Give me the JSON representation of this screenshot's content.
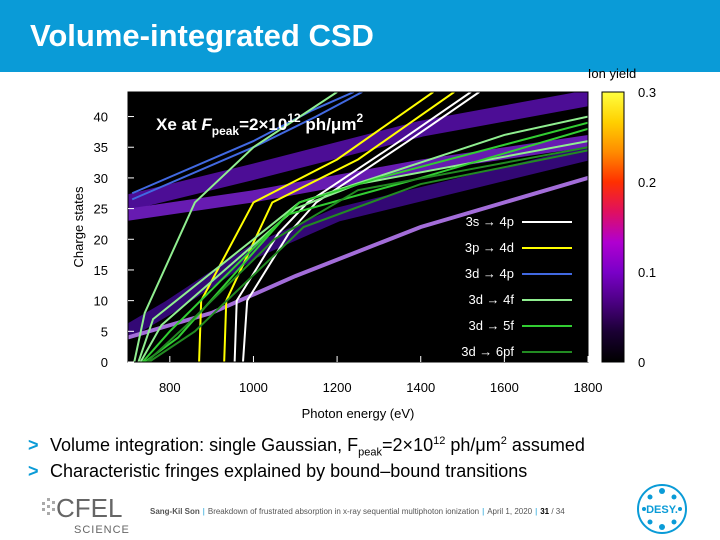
{
  "slide": {
    "title": "Volume-integrated CSD",
    "bullets": [
      {
        "marker": ">",
        "text": "Volume integration: single Gaussian, F",
        "sub": "peak",
        "mid": "=2×10",
        "sup": "12",
        "mid2": " ph/μm",
        "sup2": "2",
        "tail": " assumed"
      },
      {
        "marker": ">",
        "text": "Characteristic fringes explained by bound–bound transitions"
      }
    ]
  },
  "footer": {
    "speaker": "Sang-Kil Son",
    "talk": "Breakdown of frustrated absorption in x-ray sequential multiphoton ionization",
    "date": "April 1, 2020",
    "page": "31",
    "total": "/ 34",
    "cfel_logo_text": "CFEL",
    "cfel_logo_sub": "SCIENCE",
    "desy_logo_text": "DESY."
  },
  "chart_data": {
    "type": "heatmap",
    "annotation": {
      "prefix": "Xe at ",
      "f": "F",
      "sub": "peak",
      "mid": "=2×10",
      "sup": "12",
      "unit": " ph/μm",
      "sup2": "2"
    },
    "xlabel": "Photon energy (eV)",
    "ylabel": "Charge states",
    "xlim": [
      700,
      1800
    ],
    "ylim": [
      0,
      44
    ],
    "xticks": [
      "800",
      "1000",
      "1200",
      "1400",
      "1600",
      "1800"
    ],
    "xtick_values": [
      800,
      1000,
      1200,
      1400,
      1600,
      1800
    ],
    "yticks": [
      "0",
      "5",
      "10",
      "15",
      "20",
      "25",
      "30",
      "35",
      "40"
    ],
    "ytick_values": [
      0,
      5,
      10,
      15,
      20,
      25,
      30,
      35,
      40
    ],
    "colorbar": {
      "label": "Ion yield",
      "ticks": [
        "0.3",
        "0.2",
        "0.1",
        "0"
      ],
      "tick_values": [
        0.3,
        0.2,
        0.1,
        0
      ],
      "range": [
        0,
        0.3
      ],
      "colors": [
        "#000000",
        "#1a0033",
        "#4b0082",
        "#7a00c8",
        "#b000d0",
        "#e01060",
        "#ff3000",
        "#ff8c00",
        "#ffd000",
        "#ffff40"
      ]
    },
    "background_color": "#000000",
    "series": [
      {
        "name": "3s → 4p",
        "color": "#ffffff",
        "lines": [
          [
            [
              955,
              0
            ],
            [
              960,
              10
            ],
            [
              1060,
              21
            ],
            [
              1130,
              26
            ],
            [
              1350,
              36
            ],
            [
              1520,
              44
            ]
          ],
          [
            [
              975,
              0
            ],
            [
              985,
              10
            ],
            [
              1085,
              21
            ],
            [
              1150,
              26
            ],
            [
              1370,
              36
            ],
            [
              1540,
              44
            ]
          ]
        ]
      },
      {
        "name": "3p → 4d",
        "color": "#ffff00",
        "lines": [
          [
            [
              870,
              0
            ],
            [
              875,
              10
            ],
            [
              1000,
              26
            ],
            [
              1200,
              33
            ],
            [
              1430,
              44
            ]
          ],
          [
            [
              930,
              0
            ],
            [
              935,
              10
            ],
            [
              1045,
              26
            ],
            [
              1250,
              33
            ],
            [
              1480,
              44
            ]
          ]
        ]
      },
      {
        "name": "3d → 4p",
        "color": "#4169e1",
        "lines": [
          [
            [
              710,
              26.5
            ],
            [
              1000,
              35
            ],
            [
              1150,
              40
            ],
            [
              1260,
              44
            ]
          ],
          [
            [
              710,
              27.5
            ],
            [
              1000,
              36
            ],
            [
              1140,
              41
            ],
            [
              1240,
              44
            ]
          ]
        ]
      },
      {
        "name": "3d → 4f",
        "color": "#90ee90",
        "lines": [
          [
            [
              715,
              0
            ],
            [
              740,
              8
            ],
            [
              860,
              26
            ],
            [
              1000,
              35
            ],
            [
              1200,
              44
            ]
          ],
          [
            [
              725,
              0
            ],
            [
              760,
              7
            ],
            [
              1000,
              20
            ],
            [
              1110,
              26
            ],
            [
              1600,
              37
            ],
            [
              1800,
              40
            ]
          ],
          [
            [
              730,
              0
            ],
            [
              780,
              6
            ],
            [
              1100,
              25
            ],
            [
              1250,
              29
            ],
            [
              1800,
              36
            ]
          ]
        ]
      },
      {
        "name": "3d → 5f",
        "color": "#32cd32",
        "lines": [
          [
            [
              735,
              0
            ],
            [
              800,
              5
            ],
            [
              1110,
              26
            ],
            [
              1300,
              30
            ],
            [
              1800,
              39
            ]
          ],
          [
            [
              740,
              0
            ],
            [
              820,
              4
            ],
            [
              1080,
              24
            ],
            [
              1400,
              30
            ],
            [
              1800,
              38
            ]
          ]
        ]
      },
      {
        "name": "3d → 6pf",
        "color": "#228b22",
        "lines": [
          [
            [
              745,
              0
            ],
            [
              840,
              6
            ],
            [
              1050,
              20
            ],
            [
              1250,
              28
            ],
            [
              1800,
              35
            ]
          ],
          [
            [
              750,
              0
            ],
            [
              860,
              5
            ],
            [
              1120,
              22
            ],
            [
              1400,
              29
            ],
            [
              1800,
              34.5
            ]
          ]
        ]
      }
    ]
  }
}
